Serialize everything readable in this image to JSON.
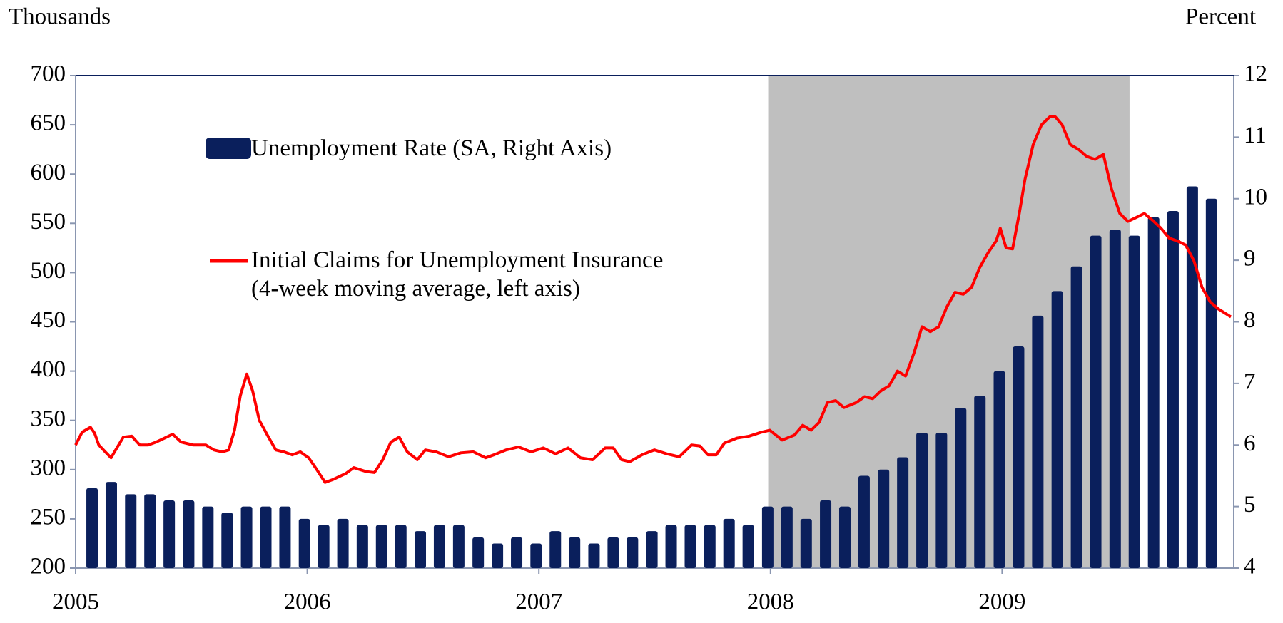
{
  "chart_data": {
    "type": "combo",
    "y_axis_label": "Thousands",
    "y2_axis_label": "Percent",
    "xlim": [
      2005,
      2010
    ],
    "xticks": [
      2005,
      2006,
      2007,
      2008,
      2009
    ],
    "ylim": [
      200,
      700
    ],
    "yticks": [
      200,
      250,
      300,
      350,
      400,
      450,
      500,
      550,
      600,
      650,
      700
    ],
    "y2lim": [
      4,
      12
    ],
    "y2ticks": [
      4,
      5,
      6,
      7,
      8,
      9,
      10,
      11,
      12
    ],
    "shade": [
      2007.99,
      2009.55
    ],
    "shade_color": "#bfbfbf",
    "series": [
      {
        "name": "Unemployment Rate (SA, Right Axis)",
        "type": "bar",
        "axis": "y2",
        "color": "#0a1f5c",
        "x": [
          2005.071,
          2005.154,
          2005.238,
          2005.321,
          2005.404,
          2005.488,
          2005.571,
          2005.654,
          2005.738,
          2005.821,
          2005.904,
          2005.988,
          2006.071,
          2006.154,
          2006.238,
          2006.321,
          2006.404,
          2006.488,
          2006.571,
          2006.654,
          2006.738,
          2006.821,
          2006.904,
          2006.988,
          2007.071,
          2007.154,
          2007.238,
          2007.321,
          2007.404,
          2007.488,
          2007.571,
          2007.654,
          2007.738,
          2007.821,
          2007.904,
          2007.988,
          2008.071,
          2008.154,
          2008.238,
          2008.321,
          2008.404,
          2008.488,
          2008.571,
          2008.654,
          2008.738,
          2008.821,
          2008.904,
          2008.988,
          2009.071,
          2009.154,
          2009.238,
          2009.321,
          2009.404,
          2009.488,
          2009.571,
          2009.654,
          2009.738,
          2009.821,
          2009.904
        ],
        "values": [
          5.3,
          5.4,
          5.2,
          5.2,
          5.1,
          5.1,
          5.0,
          4.9,
          5.0,
          5.0,
          5.0,
          4.8,
          4.7,
          4.8,
          4.7,
          4.7,
          4.7,
          4.6,
          4.7,
          4.7,
          4.5,
          4.4,
          4.5,
          4.4,
          4.6,
          4.5,
          4.4,
          4.5,
          4.5,
          4.6,
          4.7,
          4.7,
          4.7,
          4.8,
          4.7,
          5.0,
          5.0,
          4.8,
          5.1,
          5.0,
          5.5,
          5.6,
          5.8,
          6.2,
          6.2,
          6.6,
          6.8,
          7.2,
          7.6,
          8.1,
          8.5,
          8.9,
          9.4,
          9.5,
          9.4,
          9.7,
          9.8,
          10.2,
          10.0
        ]
      },
      {
        "name": "Initial Claims for Unemployment Insurance (4-week moving average, left axis)",
        "type": "line",
        "axis": "y",
        "color": "#ff0000",
        "x": [
          2005.0,
          2005.028,
          2005.064,
          2005.082,
          2005.1,
          2005.128,
          2005.153,
          2005.178,
          2005.206,
          2005.242,
          2005.277,
          2005.313,
          2005.348,
          2005.384,
          2005.419,
          2005.455,
          2005.508,
          2005.562,
          2005.597,
          2005.633,
          2005.661,
          2005.686,
          2005.711,
          2005.739,
          2005.764,
          2005.793,
          2005.828,
          2005.864,
          2005.899,
          2005.935,
          2005.97,
          2006.006,
          2006.041,
          2006.077,
          2006.112,
          2006.166,
          2006.201,
          2006.254,
          2006.29,
          2006.326,
          2006.361,
          2006.397,
          2006.432,
          2006.475,
          2006.51,
          2006.557,
          2006.61,
          2006.663,
          2006.717,
          2006.77,
          2006.806,
          2006.859,
          2006.912,
          2006.966,
          2007.019,
          2007.072,
          2007.126,
          2007.179,
          2007.232,
          2007.286,
          2007.321,
          2007.357,
          2007.392,
          2007.445,
          2007.499,
          2007.552,
          2007.606,
          2007.659,
          2007.695,
          2007.73,
          2007.766,
          2007.801,
          2007.855,
          2007.908,
          2007.961,
          2007.997,
          2008.05,
          2008.103,
          2008.139,
          2008.175,
          2008.21,
          2008.246,
          2008.281,
          2008.317,
          2008.37,
          2008.406,
          2008.441,
          2008.477,
          2008.512,
          2008.548,
          2008.583,
          2008.619,
          2008.654,
          2008.69,
          2008.726,
          2008.761,
          2008.797,
          2008.832,
          2008.868,
          2008.903,
          2008.939,
          2008.974,
          2008.992,
          2009.017,
          2009.045,
          2009.074,
          2009.099,
          2009.134,
          2009.17,
          2009.205,
          2009.23,
          2009.259,
          2009.294,
          2009.33,
          2009.365,
          2009.401,
          2009.437,
          2009.472,
          2009.508,
          2009.543,
          2009.579,
          2009.614,
          2009.65,
          2009.686,
          2009.721,
          2009.757,
          2009.792,
          2009.828,
          2009.863,
          2009.899,
          2009.934,
          2009.988
        ],
        "values": [
          325,
          338,
          343,
          337,
          325,
          318,
          312,
          322,
          333,
          334,
          325,
          325,
          328,
          332,
          336,
          328,
          325,
          325,
          320,
          318,
          320,
          340,
          375,
          397,
          380,
          350,
          335,
          320,
          318,
          315,
          318,
          312,
          300,
          287,
          290,
          296,
          302,
          298,
          297,
          310,
          328,
          333,
          318,
          310,
          320,
          318,
          313,
          317,
          318,
          312,
          315,
          320,
          323,
          318,
          322,
          316,
          322,
          312,
          310,
          322,
          322,
          310,
          308,
          315,
          320,
          316,
          313,
          325,
          324,
          315,
          315,
          327,
          332,
          334,
          338,
          340,
          330,
          335,
          345,
          340,
          348,
          368,
          370,
          363,
          368,
          374,
          372,
          380,
          385,
          400,
          395,
          418,
          445,
          440,
          445,
          465,
          480,
          478,
          485,
          505,
          520,
          532,
          545,
          525,
          524,
          560,
          595,
          630,
          650,
          658,
          658,
          650,
          630,
          625,
          618,
          615,
          620,
          585,
          560,
          552,
          556,
          560,
          553,
          545,
          535,
          532,
          528,
          512,
          485,
          470,
          463,
          455
        ]
      }
    ]
  }
}
